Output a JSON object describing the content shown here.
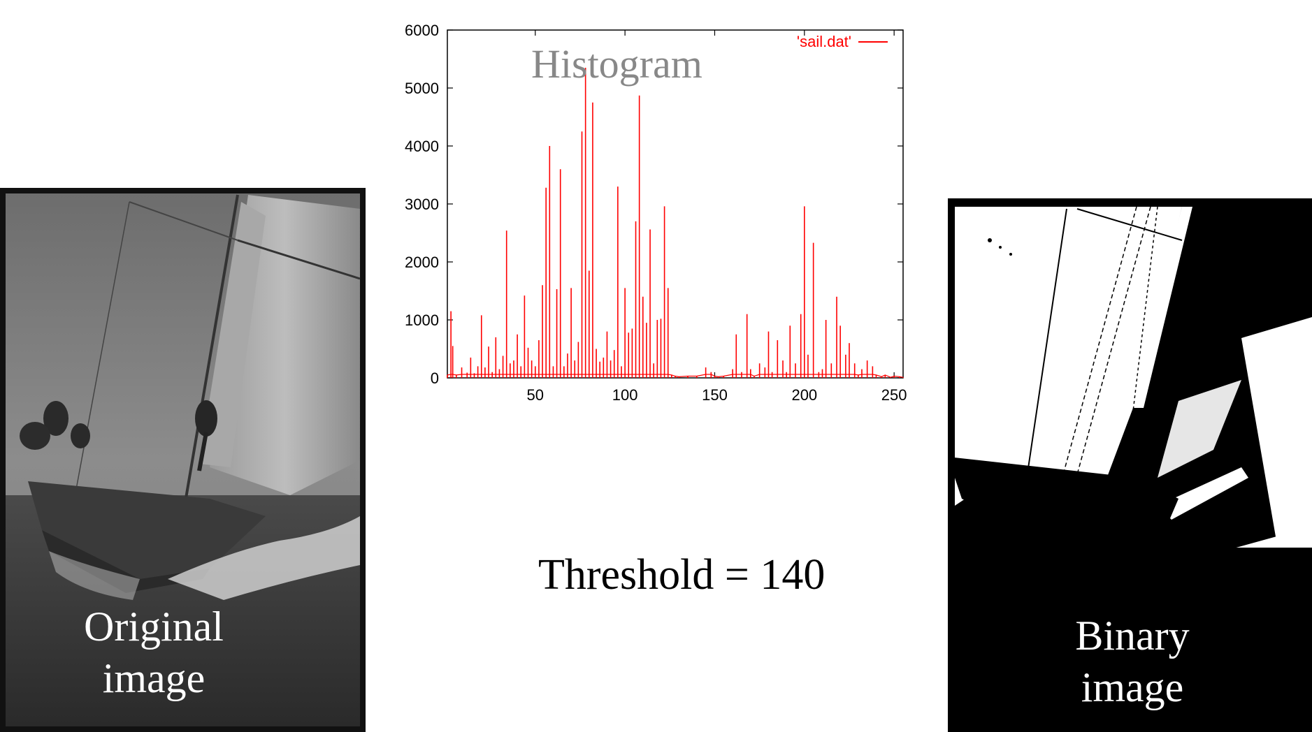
{
  "captions": {
    "original": "Original\nimage",
    "binary": "Binary\nimage",
    "threshold": "Threshold = 140"
  },
  "colors": {
    "series": "#ff0000",
    "title": "#888888"
  },
  "chart_data": {
    "type": "line",
    "title": "Histogram",
    "legend": "'sail.dat'",
    "legend_placement": "top-right",
    "xlabel": "",
    "ylabel": "",
    "xlim": [
      1,
      255
    ],
    "ylim": [
      0,
      6000
    ],
    "xticks": [
      50,
      100,
      150,
      200,
      250
    ],
    "yticks": [
      0,
      1000,
      2000,
      3000,
      4000,
      5000,
      6000
    ],
    "grid": false,
    "series": [
      {
        "x": [
          1,
          3,
          4,
          6,
          9,
          12,
          14,
          16,
          18,
          20,
          22,
          24,
          26,
          28,
          30,
          32,
          34,
          36,
          38,
          40,
          42,
          44,
          46,
          48,
          50,
          52,
          54,
          56,
          58,
          60,
          62,
          64,
          66,
          68,
          70,
          72,
          74,
          76,
          78,
          80,
          82,
          84,
          86,
          88,
          90,
          92,
          94,
          96,
          98,
          100,
          102,
          104,
          106,
          108,
          110,
          112,
          114,
          116,
          118,
          120,
          122,
          124,
          126,
          128,
          130,
          135,
          140,
          145,
          148,
          150,
          152,
          155,
          160,
          162,
          165,
          168,
          170,
          172,
          175,
          178,
          180,
          182,
          185,
          188,
          190,
          192,
          195,
          198,
          200,
          202,
          205,
          208,
          210,
          212,
          215,
          218,
          220,
          223,
          225,
          228,
          230,
          232,
          235,
          238,
          240,
          243,
          245,
          248,
          250,
          253,
          255
        ],
        "y": [
          50,
          1150,
          550,
          50,
          180,
          90,
          350,
          80,
          200,
          1080,
          180,
          540,
          100,
          700,
          150,
          380,
          2540,
          250,
          300,
          750,
          200,
          1420,
          520,
          300,
          200,
          650,
          1600,
          3280,
          4000,
          200,
          1530,
          3600,
          200,
          420,
          1550,
          300,
          620,
          4250,
          5350,
          1850,
          4750,
          500,
          280,
          350,
          800,
          300,
          480,
          3300,
          200,
          1550,
          780,
          850,
          2700,
          4870,
          1400,
          950,
          2560,
          250,
          1000,
          1020,
          2960,
          1550,
          50,
          30,
          20,
          30,
          30,
          180,
          100,
          30,
          20,
          30,
          150,
          750,
          100,
          1100,
          150,
          30,
          250,
          180,
          800,
          100,
          650,
          300,
          100,
          900,
          250,
          1100,
          2960,
          400,
          2330,
          100,
          150,
          1000,
          250,
          1400,
          900,
          400,
          600,
          250,
          50,
          150,
          300,
          200,
          50,
          20,
          50,
          10,
          30,
          20,
          10
        ]
      }
    ]
  }
}
